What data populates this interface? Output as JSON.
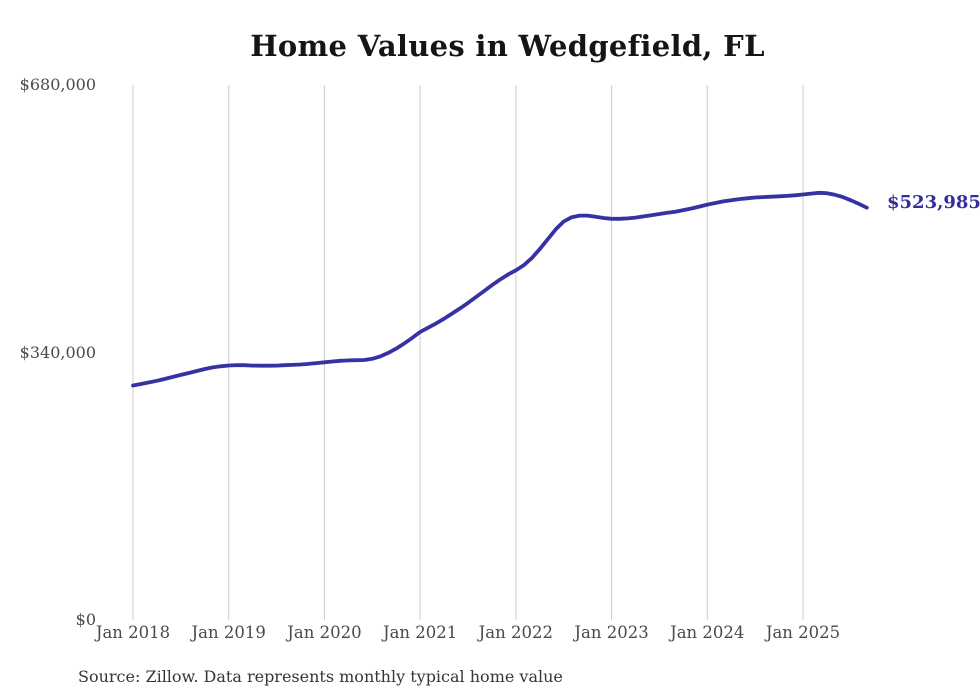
{
  "title": "Home Values in Wedgefield, FL",
  "source_note": "Source: Zillow. Data represents monthly typical home value",
  "colors": {
    "background": "#ffffff",
    "line": "#3632a3",
    "grid": "#cdcdcd",
    "title_text": "#151515",
    "axis_text": "#4a4a4a",
    "end_label_text": "#322e9e",
    "source_text": "#363636"
  },
  "chart_data": {
    "type": "line",
    "title": "Home Values in Wedgefield, FL",
    "xlabel": "",
    "ylabel": "",
    "ylim": [
      0,
      680000
    ],
    "grid": "vertical gridlines at each January tick, no horizontal gridlines, no axis lines",
    "legend_position": "none",
    "y_ticks": [
      {
        "value": 0,
        "label": "$0"
      },
      {
        "value": 340000,
        "label": "$340,000"
      },
      {
        "value": 680000,
        "label": "$680,000"
      }
    ],
    "x_tick_labels": [
      "Jan 2018",
      "Jan 2019",
      "Jan 2020",
      "Jan 2021",
      "Jan 2022",
      "Jan 2023",
      "Jan 2024",
      "Jan 2025"
    ],
    "x_range": {
      "start": "Jan 2018",
      "end": "Sep 2025",
      "interval": "monthly"
    },
    "last_point": {
      "label": "$523,985",
      "value": 523985,
      "month": "Sep 2025"
    },
    "series": [
      {
        "name": "Typical home value (USD)",
        "values": [
          298000,
          300000,
          302000,
          304000,
          306500,
          309000,
          311500,
          314000,
          316500,
          319000,
          321000,
          322500,
          323500,
          324000,
          323800,
          323400,
          323200,
          323200,
          323400,
          323800,
          324200,
          324800,
          325500,
          326500,
          327500,
          328500,
          329500,
          330000,
          330200,
          330500,
          332000,
          335000,
          339500,
          345000,
          351500,
          358500,
          366000,
          371500,
          377000,
          383000,
          389500,
          396000,
          403000,
          410500,
          418000,
          425500,
          432500,
          439000,
          444500,
          451000,
          460000,
          471500,
          484000,
          496500,
          506500,
          512000,
          514000,
          514000,
          512500,
          511000,
          510000,
          510000,
          510500,
          511500,
          513000,
          514500,
          516000,
          517500,
          519000,
          521000,
          523000,
          525500,
          528000,
          530000,
          532000,
          533500,
          535000,
          536000,
          537000,
          537500,
          538000,
          538500,
          539000,
          539800,
          540800,
          542000,
          543000,
          542500,
          540500,
          537500,
          533500,
          529000,
          523985
        ]
      }
    ]
  }
}
